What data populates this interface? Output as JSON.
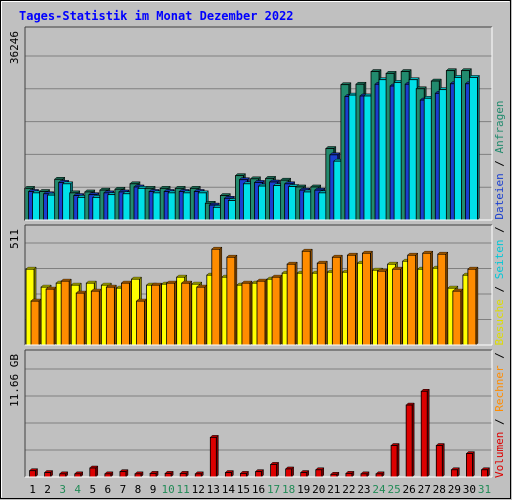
{
  "chart_data": [
    {
      "type": "bar",
      "title": "Tages-Statistik im Monat Dezember 2022",
      "ylabel": "36246",
      "y_max": 36246,
      "categories": [
        "1",
        "2",
        "3",
        "4",
        "5",
        "6",
        "7",
        "8",
        "9",
        "10",
        "11",
        "12",
        "13",
        "14",
        "15",
        "16",
        "17",
        "18",
        "19",
        "20",
        "21",
        "22",
        "23",
        "24",
        "25",
        "26",
        "27",
        "28",
        "29",
        "30",
        "31"
      ],
      "weekend_days": [
        "3",
        "4",
        "10",
        "11",
        "17",
        "18",
        "24",
        "25",
        "31"
      ],
      "legend": [
        "Anfragen",
        "Dateien",
        "Seiten"
      ],
      "series": [
        {
          "name": "Anfragen",
          "color": "#228b6e",
          "values": [
            7000,
            6300,
            9000,
            6000,
            6200,
            6600,
            6800,
            8000,
            7000,
            7000,
            7000,
            7000,
            3700,
            5400,
            9800,
            9100,
            9200,
            8800,
            7300,
            7300,
            15800,
            29900,
            30000,
            32800,
            32400,
            32800,
            29000,
            30700,
            33000,
            33000,
            0
          ]
        },
        {
          "name": "Dateien",
          "color": "#1a3fd0",
          "values": [
            6300,
            5800,
            8300,
            5400,
            5600,
            6000,
            6200,
            7300,
            6300,
            6300,
            6300,
            6300,
            3300,
            4800,
            8900,
            8300,
            8400,
            8000,
            6600,
            6600,
            14400,
            27300,
            27400,
            30000,
            29600,
            30000,
            26500,
            28000,
            30100,
            30100,
            0
          ]
        },
        {
          "name": "Seiten",
          "color": "#00e0e8",
          "values": [
            6000,
            5500,
            8000,
            5000,
            5000,
            5600,
            5800,
            7000,
            6000,
            6000,
            6000,
            6000,
            2800,
            4300,
            8000,
            7500,
            7600,
            7400,
            6200,
            6000,
            13000,
            27600,
            27400,
            31000,
            30400,
            31000,
            26900,
            28800,
            31500,
            31500,
            0
          ]
        }
      ]
    },
    {
      "type": "bar",
      "ylabel": "511",
      "y_max": 511,
      "categories": [
        "1",
        "2",
        "3",
        "4",
        "5",
        "6",
        "7",
        "8",
        "9",
        "10",
        "11",
        "12",
        "13",
        "14",
        "15",
        "16",
        "17",
        "18",
        "19",
        "20",
        "21",
        "22",
        "23",
        "24",
        "25",
        "26",
        "27",
        "28",
        "29",
        "30",
        "31"
      ],
      "legend": [
        "Besuche",
        "Rechner"
      ],
      "series": [
        {
          "name": "Besuche",
          "color": "#ffff00",
          "values": [
            380,
            290,
            310,
            300,
            310,
            300,
            285,
            330,
            300,
            305,
            340,
            305,
            350,
            340,
            300,
            310,
            330,
            360,
            360,
            360,
            365,
            365,
            410,
            375,
            405,
            420,
            380,
            385,
            285,
            350,
            0
          ]
        },
        {
          "name": "Rechner",
          "color": "#ff8c00",
          "values": [
            220,
            280,
            320,
            260,
            270,
            290,
            310,
            220,
            300,
            310,
            310,
            290,
            480,
            440,
            310,
            320,
            340,
            405,
            470,
            410,
            440,
            450,
            460,
            370,
            380,
            450,
            460,
            455,
            270,
            380,
            0
          ]
        }
      ]
    },
    {
      "type": "bar",
      "ylabel": "11.66 GB",
      "y_max": 11.66,
      "y_unit": "GB",
      "categories": [
        "1",
        "2",
        "3",
        "4",
        "5",
        "6",
        "7",
        "8",
        "9",
        "10",
        "11",
        "12",
        "13",
        "14",
        "15",
        "16",
        "17",
        "18",
        "19",
        "20",
        "21",
        "22",
        "23",
        "24",
        "25",
        "26",
        "27",
        "28",
        "29",
        "30",
        "31"
      ],
      "legend": [
        "Volumen"
      ],
      "series": [
        {
          "name": "Volumen",
          "color": "#dd0000",
          "values": [
            0.68,
            0.48,
            0.34,
            0.34,
            0.97,
            0.34,
            0.58,
            0.34,
            0.39,
            0.39,
            0.39,
            0.34,
            4.28,
            0.48,
            0.39,
            0.58,
            1.36,
            0.87,
            0.48,
            0.78,
            0.29,
            0.39,
            0.34,
            0.34,
            3.4,
            7.77,
            9.26,
            3.4,
            0.78,
            2.53,
            0.78
          ]
        }
      ]
    }
  ],
  "right_legend": [
    {
      "text": "Volumen",
      "color": "#dd0000"
    },
    {
      "text": "Rechner",
      "color": "#ff8c00"
    },
    {
      "text": "Besuche",
      "color": "#dddd00"
    },
    {
      "text": "Seiten",
      "color": "#00c8d8"
    },
    {
      "text": "Dateien",
      "color": "#1a3fd0"
    },
    {
      "text": "Anfragen",
      "color": "#228b6e"
    }
  ],
  "colors": {
    "background": "#c0c0c0",
    "title": "#0000ff",
    "weekday_label": "#000000",
    "weekend_label": "#228b57"
  }
}
